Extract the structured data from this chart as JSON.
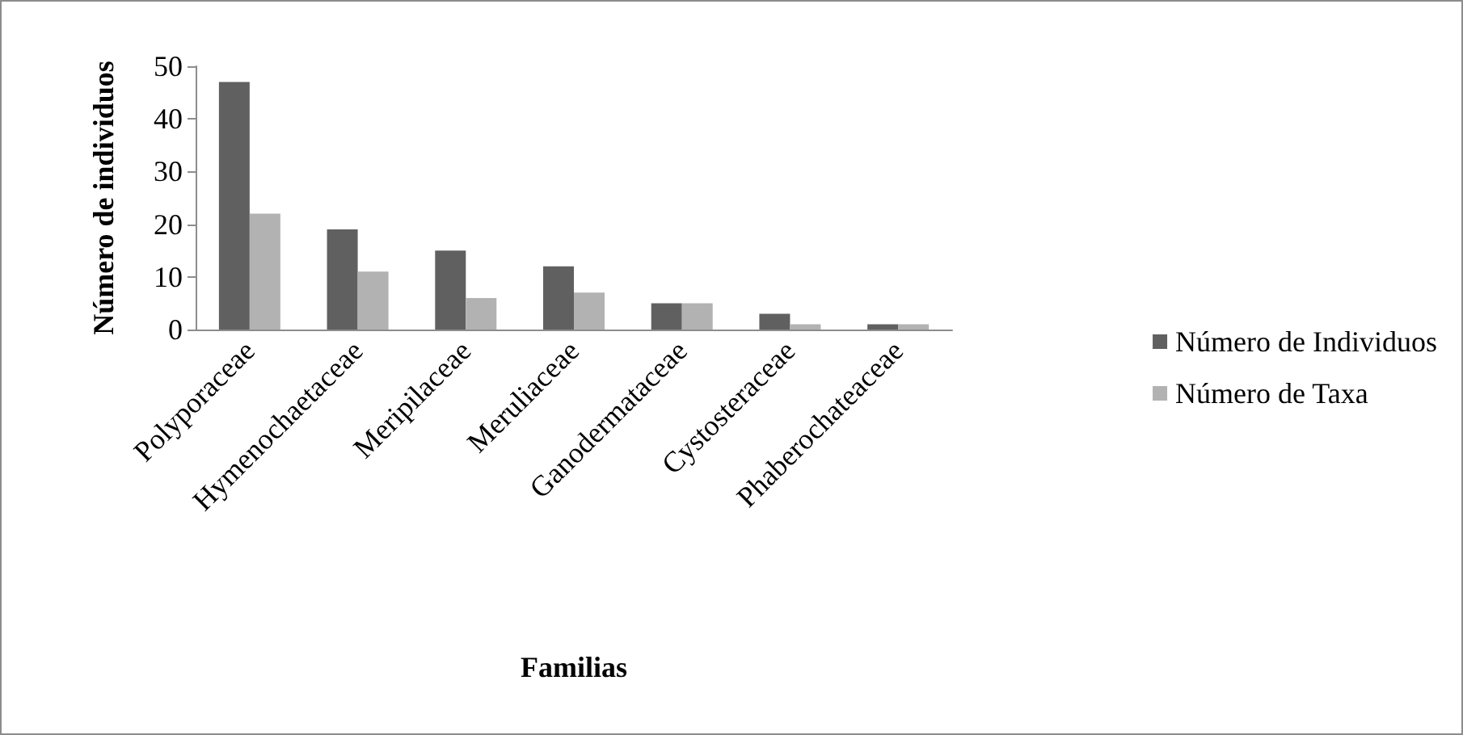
{
  "chart_data": {
    "type": "bar",
    "xlabel": "Familias",
    "ylabel": "Número de individuos",
    "categories": [
      "Polyporaceae",
      "Hymenochaetaceae",
      "Meripilaceae",
      "Meruliaceae",
      "Ganodermataceae",
      "Cystosteraceae",
      "Phaberochateaceae"
    ],
    "series": [
      {
        "name": "Número de Individuos",
        "color": "#606060",
        "values": [
          47,
          19,
          15,
          12,
          5,
          3,
          1
        ]
      },
      {
        "name": "Número de Taxa",
        "color": "#b2b2b2",
        "values": [
          22,
          11,
          6,
          7,
          5,
          1,
          1
        ]
      }
    ],
    "ylim": [
      0,
      50
    ],
    "yticks": [
      0,
      10,
      20,
      30,
      40,
      50
    ],
    "grid": false,
    "legend": "right"
  }
}
